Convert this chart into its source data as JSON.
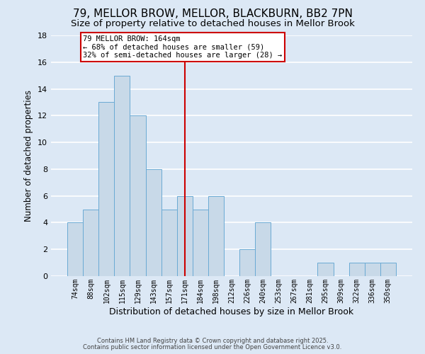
{
  "title": "79, MELLOR BROW, MELLOR, BLACKBURN, BB2 7PN",
  "subtitle": "Size of property relative to detached houses in Mellor Brook",
  "xlabel": "Distribution of detached houses by size in Mellor Brook",
  "ylabel": "Number of detached properties",
  "bin_labels": [
    "74sqm",
    "88sqm",
    "102sqm",
    "115sqm",
    "129sqm",
    "143sqm",
    "157sqm",
    "171sqm",
    "184sqm",
    "198sqm",
    "212sqm",
    "226sqm",
    "240sqm",
    "253sqm",
    "267sqm",
    "281sqm",
    "295sqm",
    "309sqm",
    "322sqm",
    "336sqm",
    "350sqm"
  ],
  "bar_values": [
    4,
    5,
    13,
    15,
    12,
    8,
    5,
    6,
    5,
    6,
    0,
    2,
    4,
    0,
    0,
    0,
    1,
    0,
    1,
    1,
    1
  ],
  "bar_color": "#c8d9e8",
  "bar_edge_color": "#6aaad4",
  "background_color": "#dce8f5",
  "grid_color": "#ffffff",
  "vline_x": 7,
  "vline_color": "#cc0000",
  "annotation_title": "79 MELLOR BROW: 164sqm",
  "annotation_line1": "← 68% of detached houses are smaller (59)",
  "annotation_line2": "32% of semi-detached houses are larger (28) →",
  "annotation_box_color": "#ffffff",
  "annotation_box_edge": "#cc0000",
  "ylim": [
    0,
    18
  ],
  "yticks": [
    0,
    2,
    4,
    6,
    8,
    10,
    12,
    14,
    16,
    18
  ],
  "footer1": "Contains HM Land Registry data © Crown copyright and database right 2025.",
  "footer2": "Contains public sector information licensed under the Open Government Licence v3.0.",
  "title_fontsize": 11,
  "subtitle_fontsize": 9.5
}
